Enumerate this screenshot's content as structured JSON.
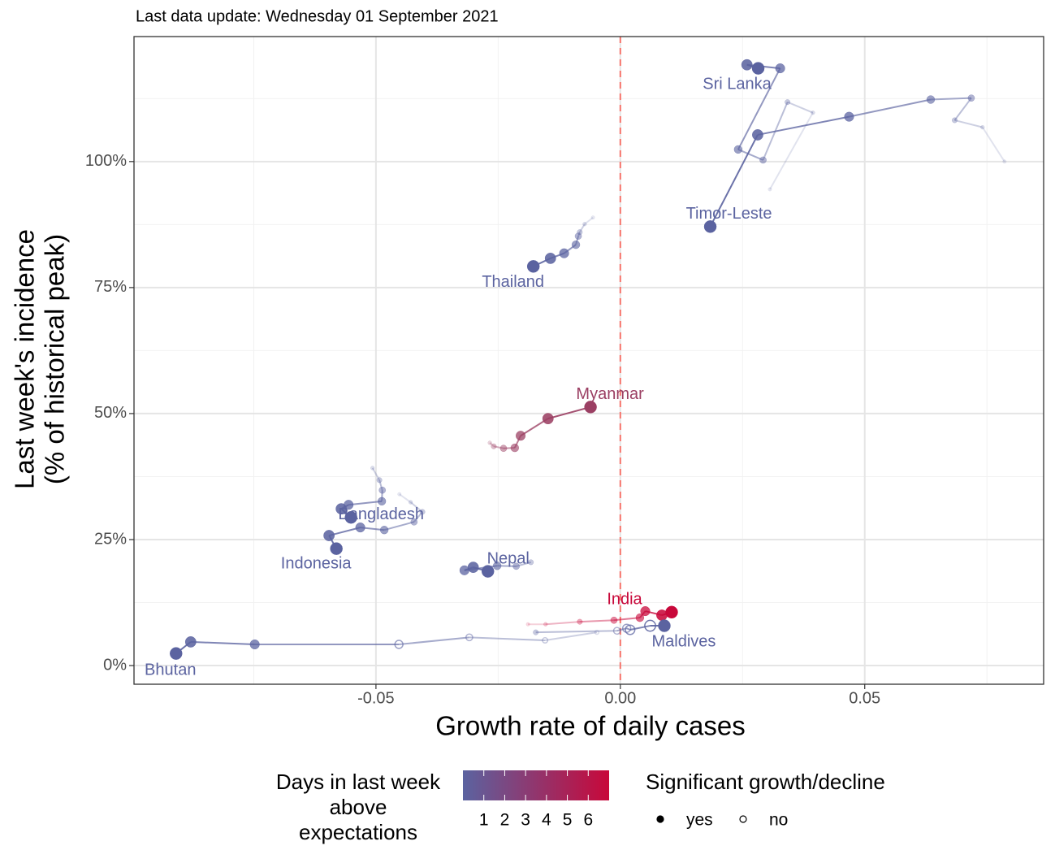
{
  "chart_data": {
    "type": "trajectory",
    "subtitle": "Last data update: Wednesday 01 September 2021",
    "x_label": "Growth rate of daily cases",
    "y_label": [
      "Last week's incidence",
      "(% of historical peak)"
    ],
    "xlim": [
      -0.0995,
      0.0866
    ],
    "ylim": [
      -3.7,
      124.8
    ],
    "xticks": [
      {
        "value": -0.05,
        "label": "-0.05"
      },
      {
        "value": 0,
        "label": "0.00"
      },
      {
        "value": 0.05,
        "label": "0.05"
      }
    ],
    "yticks": [
      {
        "value": 0,
        "label": "0%"
      },
      {
        "value": 25,
        "label": "25%"
      },
      {
        "value": 50,
        "label": "50%"
      },
      {
        "value": 75,
        "label": "75%"
      },
      {
        "value": 100,
        "label": "100%"
      }
    ],
    "xminorticks": [
      -0.075,
      -0.025,
      0.025,
      0.075
    ],
    "yminorticks": [
      12.5,
      37.5,
      62.5,
      87.5,
      112.5
    ],
    "grid": true,
    "reference_line": {
      "x": 0,
      "color": "#f8766d",
      "dashed": true
    },
    "series": [
      {
        "name": "Sri Lanka",
        "color": "#5b63a0",
        "x": [
          0.0306,
          0.0394,
          0.0342,
          0.0292,
          0.0241,
          0.0327,
          0.0259,
          0.0282
        ],
        "values": [
          94.5,
          109.7,
          111.8,
          100.3,
          102.4,
          118.5,
          119.2,
          118.5
        ],
        "significant": [
          true,
          true,
          true,
          true,
          true,
          true,
          true,
          true
        ]
      },
      {
        "name": "Timor-Leste",
        "color": "#5b63a0",
        "x": [
          0.0786,
          0.0741,
          0.0684,
          0.0718,
          0.0635,
          0.0468,
          0.0281,
          0.0184
        ],
        "values": [
          100.0,
          106.8,
          108.2,
          112.6,
          112.3,
          108.9,
          105.3,
          87.1
        ],
        "significant": [
          true,
          true,
          true,
          true,
          true,
          true,
          true,
          true
        ]
      },
      {
        "name": "Thailand",
        "color": "#5b63a0",
        "x": [
          -0.0056,
          -0.0073,
          -0.0083,
          -0.0086,
          -0.0091,
          -0.0115,
          -0.0143,
          -0.0178
        ],
        "values": [
          88.9,
          87.6,
          86.0,
          85.2,
          83.5,
          81.8,
          80.8,
          79.2
        ],
        "significant": [
          true,
          true,
          true,
          true,
          true,
          true,
          true,
          true
        ]
      },
      {
        "name": "Myanmar",
        "color": "#9b3f63",
        "x": [
          -0.0267,
          -0.0259,
          -0.0239,
          -0.0216,
          -0.0204,
          -0.0148,
          -0.0061
        ],
        "values": [
          44.2,
          43.5,
          43.1,
          43.2,
          45.6,
          49.0,
          51.3
        ],
        "significant": [
          true,
          true,
          true,
          true,
          true,
          true,
          true
        ]
      },
      {
        "name": "Bangladesh",
        "color": "#5b63a0",
        "x": [
          -0.0507,
          -0.0493,
          -0.0487,
          -0.0488,
          -0.0556,
          -0.0571,
          -0.0551
        ],
        "values": [
          39.2,
          36.8,
          34.8,
          32.6,
          31.9,
          31.1,
          29.4
        ],
        "significant": [
          true,
          true,
          true,
          true,
          true,
          true,
          true
        ]
      },
      {
        "name": "Indonesia",
        "color": "#5b63a0",
        "x": [
          -0.0452,
          -0.0429,
          -0.0405,
          -0.0422,
          -0.0483,
          -0.0532,
          -0.0596,
          -0.0581
        ],
        "values": [
          34.0,
          32.4,
          30.5,
          28.5,
          26.9,
          27.4,
          25.8,
          23.2
        ],
        "significant": [
          true,
          true,
          true,
          true,
          true,
          true,
          true,
          true
        ]
      },
      {
        "name": "Nepal",
        "color": "#5b63a0",
        "x": [
          -0.0183,
          -0.0213,
          -0.0252,
          -0.0319,
          -0.0301,
          -0.0271
        ],
        "values": [
          20.5,
          19.7,
          19.8,
          18.9,
          19.5,
          18.7
        ],
        "significant": [
          true,
          true,
          true,
          true,
          true,
          true
        ]
      },
      {
        "name": "India",
        "color": "#c8083a",
        "x": [
          -0.0189,
          -0.0153,
          -0.0083,
          -0.0013,
          0.004,
          0.0051,
          0.0085,
          0.0105
        ],
        "values": [
          8.2,
          8.2,
          8.7,
          9.0,
          9.5,
          10.8,
          10.0,
          10.6
        ],
        "significant": [
          true,
          true,
          true,
          true,
          true,
          true,
          true,
          true
        ]
      },
      {
        "name": "Maldives",
        "color": "#5b63a0",
        "x": [
          -0.0173,
          -0.0007,
          0.0013,
          0.002,
          0.0061,
          0.009
        ],
        "values": [
          6.6,
          6.9,
          7.4,
          7.1,
          7.9,
          7.9
        ],
        "significant": [
          true,
          false,
          false,
          false,
          false,
          true
        ]
      },
      {
        "name": "Bhutan",
        "color": "#5b63a0",
        "x": [
          -0.0048,
          -0.0154,
          -0.0309,
          -0.0453,
          -0.0748,
          -0.0879,
          -0.0909
        ],
        "values": [
          6.6,
          5.0,
          5.6,
          4.2,
          4.2,
          4.7,
          2.4
        ],
        "significant": [
          false,
          false,
          false,
          false,
          true,
          true,
          true
        ]
      }
    ],
    "color_legend": {
      "title": [
        "Days in last week",
        "above",
        "expectations"
      ],
      "ticks": [
        1,
        2,
        3,
        4,
        5,
        6
      ],
      "limits": [
        0,
        7
      ],
      "colors": [
        "#5b63a0",
        "#c8083a"
      ]
    },
    "shape_legend": {
      "title": "Significant growth/decline",
      "items": [
        "yes",
        "no"
      ]
    }
  }
}
